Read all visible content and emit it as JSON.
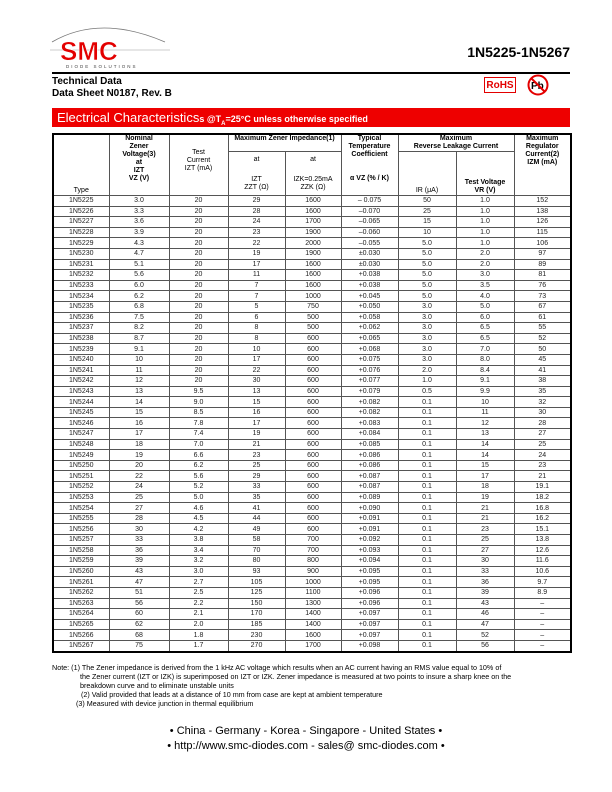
{
  "header": {
    "logo_text": "SMC",
    "logo_subtext": "DIODE SOLUTIONS",
    "part_range": "1N5225-1N5267",
    "doc_line1": "Technical Data",
    "doc_line2": "Data Sheet N0187, Rev. B",
    "rohs_badge": "RoHS",
    "pb_free_badge": "Pb"
  },
  "banner": {
    "title": "Electrical Characteristics",
    "condition_prefix": "s @T",
    "condition_sub": "A",
    "condition_suffix": "=25°C unless otherwise specified",
    "color": "#ee0000"
  },
  "table": {
    "headers": {
      "type": "Type",
      "vz": [
        "Nominal",
        "Zener",
        "Voltage(3)",
        "at",
        "IZT",
        "VZ (V)"
      ],
      "izt": [
        "Test",
        "Current",
        "IZT (mA)"
      ],
      "impedance_group": "Maximum Zener Impedance(1)",
      "zzt": [
        "at",
        "IZT",
        "ZZT (Ω)"
      ],
      "zzk": [
        "at",
        "IZK=0.25mA",
        "ZZK (Ω)"
      ],
      "tc": [
        "Typical",
        "Temperature",
        "Coefficient",
        "α VZ (% / K)"
      ],
      "leak_group": [
        "Maximum",
        "Reverse Leakage Current"
      ],
      "ir": "IR (μA)",
      "vr": [
        "Test Voltage",
        "VR (V)"
      ],
      "izm": [
        "Maximum",
        "Regulator",
        "Current(2)",
        "IZM (mA)"
      ]
    },
    "rows": [
      [
        "1N5225",
        "3.0",
        "20",
        "29",
        "1600",
        "– 0.075",
        "50",
        "1.0",
        "152"
      ],
      [
        "1N5226",
        "3.3",
        "20",
        "28",
        "1600",
        "–0.070",
        "25",
        "1.0",
        "138"
      ],
      [
        "1N5227",
        "3.6",
        "20",
        "24",
        "1700",
        "–0.065",
        "15",
        "1.0",
        "126"
      ],
      [
        "1N5228",
        "3.9",
        "20",
        "23",
        "1900",
        "–0.060",
        "10",
        "1.0",
        "115"
      ],
      [
        "1N5229",
        "4.3",
        "20",
        "22",
        "2000",
        "–0.055",
        "5.0",
        "1.0",
        "106"
      ],
      [
        "1N5230",
        "4.7",
        "20",
        "19",
        "1900",
        "±0.030",
        "5.0",
        "2.0",
        "97"
      ],
      [
        "1N5231",
        "5.1",
        "20",
        "17",
        "1600",
        "±0.030",
        "5.0",
        "2.0",
        "89"
      ],
      [
        "1N5232",
        "5.6",
        "20",
        "11",
        "1600",
        "+0.038",
        "5.0",
        "3.0",
        "81"
      ],
      [
        "1N5233",
        "6.0",
        "20",
        "7",
        "1600",
        "+0.038",
        "5.0",
        "3.5",
        "76"
      ],
      [
        "1N5234",
        "6.2",
        "20",
        "7",
        "1000",
        "+0.045",
        "5.0",
        "4.0",
        "73"
      ],
      [
        "1N5235",
        "6.8",
        "20",
        "5",
        "750",
        "+0.050",
        "3.0",
        "5.0",
        "67"
      ],
      [
        "1N5236",
        "7.5",
        "20",
        "6",
        "500",
        "+0.058",
        "3.0",
        "6.0",
        "61"
      ],
      [
        "1N5237",
        "8.2",
        "20",
        "8",
        "500",
        "+0.062",
        "3.0",
        "6.5",
        "55"
      ],
      [
        "1N5238",
        "8.7",
        "20",
        "8",
        "600",
        "+0.065",
        "3.0",
        "6.5",
        "52"
      ],
      [
        "1N5239",
        "9.1",
        "20",
        "10",
        "600",
        "+0.068",
        "3.0",
        "7.0",
        "50"
      ],
      [
        "1N5240",
        "10",
        "20",
        "17",
        "600",
        "+0.075",
        "3.0",
        "8.0",
        "45"
      ],
      [
        "1N5241",
        "11",
        "20",
        "22",
        "600",
        "+0.076",
        "2.0",
        "8.4",
        "41"
      ],
      [
        "1N5242",
        "12",
        "20",
        "30",
        "600",
        "+0.077",
        "1.0",
        "9.1",
        "38"
      ],
      [
        "1N5243",
        "13",
        "9.5",
        "13",
        "600",
        "+0.079",
        "0.5",
        "9.9",
        "35"
      ],
      [
        "1N5244",
        "14",
        "9.0",
        "15",
        "600",
        "+0.082",
        "0.1",
        "10",
        "32"
      ],
      [
        "1N5245",
        "15",
        "8.5",
        "16",
        "600",
        "+0.082",
        "0.1",
        "11",
        "30"
      ],
      [
        "1N5246",
        "16",
        "7.8",
        "17",
        "600",
        "+0.083",
        "0.1",
        "12",
        "28"
      ],
      [
        "1N5247",
        "17",
        "7.4",
        "19",
        "600",
        "+0.084",
        "0.1",
        "13",
        "27"
      ],
      [
        "1N5248",
        "18",
        "7.0",
        "21",
        "600",
        "+0.085",
        "0.1",
        "14",
        "25"
      ],
      [
        "1N5249",
        "19",
        "6.6",
        "23",
        "600",
        "+0.086",
        "0.1",
        "14",
        "24"
      ],
      [
        "1N5250",
        "20",
        "6.2",
        "25",
        "600",
        "+0.086",
        "0.1",
        "15",
        "23"
      ],
      [
        "1N5251",
        "22",
        "5.6",
        "29",
        "600",
        "+0.087",
        "0.1",
        "17",
        "21"
      ],
      [
        "1N5252",
        "24",
        "5.2",
        "33",
        "600",
        "+0.087",
        "0.1",
        "18",
        "19.1"
      ],
      [
        "1N5253",
        "25",
        "5.0",
        "35",
        "600",
        "+0.089",
        "0.1",
        "19",
        "18.2"
      ],
      [
        "1N5254",
        "27",
        "4.6",
        "41",
        "600",
        "+0.090",
        "0.1",
        "21",
        "16.8"
      ],
      [
        "1N5255",
        "28",
        "4.5",
        "44",
        "600",
        "+0.091",
        "0.1",
        "21",
        "16.2"
      ],
      [
        "1N5256",
        "30",
        "4.2",
        "49",
        "600",
        "+0.091",
        "0.1",
        "23",
        "15.1"
      ],
      [
        "1N5257",
        "33",
        "3.8",
        "58",
        "700",
        "+0.092",
        "0.1",
        "25",
        "13.8"
      ],
      [
        "1N5258",
        "36",
        "3.4",
        "70",
        "700",
        "+0.093",
        "0.1",
        "27",
        "12.6"
      ],
      [
        "1N5259",
        "39",
        "3.2",
        "80",
        "800",
        "+0.094",
        "0.1",
        "30",
        "11.6"
      ],
      [
        "1N5260",
        "43",
        "3.0",
        "93",
        "900",
        "+0.095",
        "0.1",
        "33",
        "10.6"
      ],
      [
        "1N5261",
        "47",
        "2.7",
        "105",
        "1000",
        "+0.095",
        "0.1",
        "36",
        "9.7"
      ],
      [
        "1N5262",
        "51",
        "2.5",
        "125",
        "1100",
        "+0.096",
        "0.1",
        "39",
        "8.9"
      ],
      [
        "1N5263",
        "56",
        "2.2",
        "150",
        "1300",
        "+0.096",
        "0.1",
        "43",
        "–"
      ],
      [
        "1N5264",
        "60",
        "2.1",
        "170",
        "1400",
        "+0.097",
        "0.1",
        "46",
        "–"
      ],
      [
        "1N5265",
        "62",
        "2.0",
        "185",
        "1400",
        "+0.097",
        "0.1",
        "47",
        "–"
      ],
      [
        "1N5266",
        "68",
        "1.8",
        "230",
        "1600",
        "+0.097",
        "0.1",
        "52",
        "–"
      ],
      [
        "1N5267",
        "75",
        "1.7",
        "270",
        "1700",
        "+0.098",
        "0.1",
        "56",
        "–"
      ]
    ]
  },
  "notes": [
    "Note: (1) The Zener impedance is derived from the 1 kHz AC voltage which results when an AC current having an RMS value equal to 10% of",
    "the Zener current (IZT or IZK) is superimposed on IZT or IZK. Zener impedance is measured at two points to insure a sharp knee on the",
    "breakdown curve and to eliminate unstable units",
    "(2) Valid provided that leads at a distance of 10 mm from case are kept at ambient temperature",
    "(3) Measured with device junction in thermal equilibrium"
  ],
  "footer": {
    "countries": "• China  -  Germany  -  Korea  -  Singapore  -  United States •",
    "contact": "• http://www.smc-diodes.com  -  sales@ smc-diodes.com •"
  }
}
